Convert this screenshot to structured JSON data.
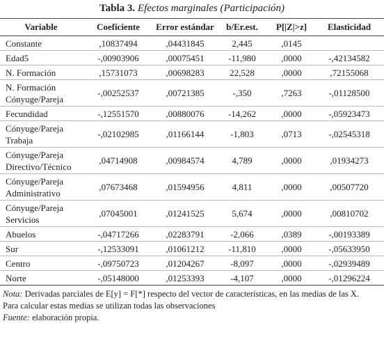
{
  "title": {
    "label": "Tabla 3.",
    "text": "Efectos marginales (Participación)"
  },
  "table": {
    "header": [
      "Variable",
      "Coeficiente",
      "Error estándar",
      "b/Er.est.",
      "P[|Z|>z]",
      "Elasticidad"
    ],
    "rows": [
      {
        "variable": [
          "Constante"
        ],
        "values": [
          ",10837494",
          ",04431845",
          "2,445",
          ",0145"
        ]
      },
      {
        "variable": [
          "Edad5"
        ],
        "values": [
          "-,00903906",
          ",00075451",
          "-11,980",
          ",0000",
          "-,42134582"
        ]
      },
      {
        "variable": [
          "N. Formación"
        ],
        "values": [
          ",15731073",
          ",00698283",
          "22,528",
          ",0000",
          ",72155068"
        ]
      },
      {
        "variable": [
          "N. Formación",
          "Cónyuge/Pareja"
        ],
        "values": [
          "-,00252537",
          ",00721385",
          "-,350",
          ",7263",
          "-,01128500"
        ]
      },
      {
        "variable": [
          "Fecundidad"
        ],
        "values": [
          "-,12551570",
          ",00880076",
          "-14,262",
          ",0000",
          "-,05923473"
        ]
      },
      {
        "variable": [
          "Cónyuge/Pareja",
          "Trabaja"
        ],
        "values": [
          "-,02102985",
          ",01166144",
          "-1,803",
          ",0713",
          "-,02545318"
        ]
      },
      {
        "variable": [
          "Cónyuge/Pareja",
          "Directivo/Técnico"
        ],
        "values": [
          ",04714908",
          ",00984574",
          "4,789",
          ",0000",
          ",01934273"
        ]
      },
      {
        "variable": [
          "Cónyuge/Pareja",
          "Administrativo"
        ],
        "values": [
          ",07673468",
          ",01594956",
          "4,811",
          ",0000",
          ",00507720"
        ]
      },
      {
        "variable": [
          "Cónyuge/Pareja",
          "Servicios"
        ],
        "values": [
          ",07045001",
          ",01241525",
          "5,674",
          ",0000",
          ",00810702"
        ]
      },
      {
        "variable": [
          "Abuelos"
        ],
        "values": [
          "-,04717266",
          ",02283791",
          "-2,066",
          ",0389",
          "-,00193389"
        ]
      },
      {
        "variable": [
          "Sur"
        ],
        "values": [
          "-,12533091",
          ",01061212",
          "-11,810",
          ",0000",
          "-,05633950"
        ]
      },
      {
        "variable": [
          "Centro"
        ],
        "values": [
          "-,09750723",
          ",01204267",
          "-8,097",
          ",0000",
          "-,02939489"
        ]
      },
      {
        "variable": [
          "Norte"
        ],
        "values": [
          "-,05148000",
          ",01253393",
          "-4,107",
          ",0000",
          "-,01296224"
        ]
      }
    ]
  },
  "notes": {
    "note_label": "Nota:",
    "note_lines": [
      "Derivadas parciales de E[y] = F[*] respecto del vector de características, en las medias de las X.",
      "Para calcular estas medias se utilizan todas las observaciones"
    ],
    "source_label": "Fuente:",
    "source_text": "elaboración propia."
  }
}
